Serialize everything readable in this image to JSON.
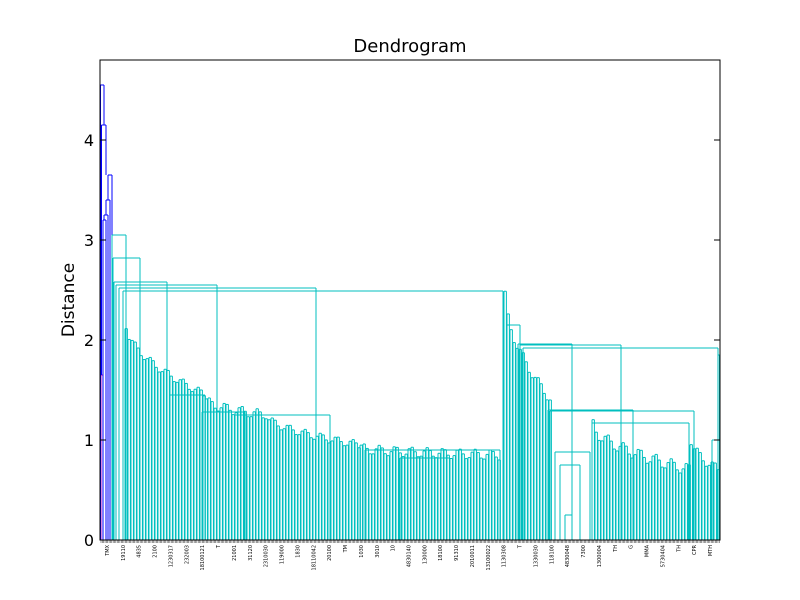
{
  "chart_data": {
    "type": "dendrogram",
    "title": "Dendrogram",
    "xlabel": "",
    "ylabel": "Distance",
    "ylim": [
      0,
      4.8
    ],
    "yticks": [
      0,
      1,
      2,
      3,
      4
    ],
    "grid": false,
    "colors": {
      "outlier_cluster": "#0000ff",
      "main_cluster": "#00bfbf",
      "outlier_leaf": "#bf00bf"
    },
    "outlier_merges": [
      {
        "name": "top-merge",
        "height": 4.55
      },
      {
        "name": "merge-2",
        "height": 4.15
      },
      {
        "name": "merge-3",
        "height": 3.65
      },
      {
        "name": "merge-4",
        "height": 3.4
      },
      {
        "name": "merge-5",
        "height": 3.25
      },
      {
        "name": "merge-6",
        "height": 3.2
      },
      {
        "name": "merge-7",
        "height": 3.05
      },
      {
        "name": "merge-8",
        "height": 2.82
      }
    ],
    "main_merges": [
      {
        "name": "left-group-1",
        "height": 2.58
      },
      {
        "name": "left-group-2",
        "height": 2.55
      },
      {
        "name": "left-group-3",
        "height": 2.52
      },
      {
        "name": "left-right-join",
        "height": 2.49
      },
      {
        "name": "right-upper",
        "height": 1.96
      },
      {
        "name": "right-upper-2",
        "height": 1.92
      },
      {
        "name": "left-mid",
        "height": 1.45
      },
      {
        "name": "right-mid-1",
        "height": 1.3
      },
      {
        "name": "right-mid-2",
        "height": 1.29
      },
      {
        "name": "left-low-1",
        "height": 1.28
      },
      {
        "name": "left-low-2",
        "height": 1.25
      },
      {
        "name": "right-low",
        "height": 1.17
      },
      {
        "name": "right-right",
        "height": 1.0
      },
      {
        "name": "left-floor",
        "height": 0.9
      }
    ],
    "leaf_labels": [
      "TMX",
      "19110",
      "4835",
      "2100",
      "1230317",
      "232003",
      "18100121",
      "T",
      "21001",
      "31120",
      "2310030",
      "119000",
      "1830",
      "18110042",
      "20100",
      "TM",
      "1030",
      "3010",
      "10",
      "4830140",
      "130000",
      "18100",
      "91310",
      "2010011",
      "13100022",
      "1130308",
      "T",
      "1330030",
      "118100",
      "4830048",
      "7300",
      "1300004",
      "TH",
      "G",
      "MMA",
      "5730404",
      "TH",
      "CPR",
      "MTH"
    ]
  }
}
